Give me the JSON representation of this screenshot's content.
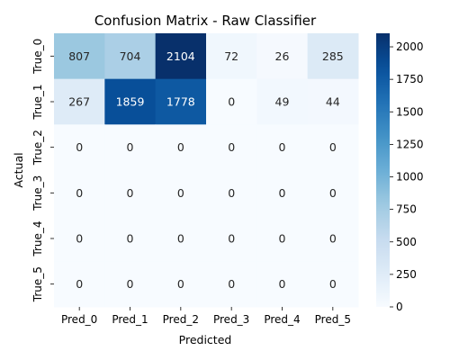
{
  "chart_data": {
    "type": "heatmap",
    "title": "Confusion Matrix - Raw Classifier",
    "xlabel": "Predicted",
    "ylabel": "Actual",
    "x_categories": [
      "Pred_0",
      "Pred_1",
      "Pred_2",
      "Pred_3",
      "Pred_4",
      "Pred_5"
    ],
    "y_categories": [
      "True_0",
      "True_1",
      "True_2",
      "True_3",
      "True_4",
      "True_5"
    ],
    "values": [
      [
        807,
        704,
        2104,
        72,
        26,
        285
      ],
      [
        267,
        1859,
        1778,
        0,
        49,
        44
      ],
      [
        0,
        0,
        0,
        0,
        0,
        0
      ],
      [
        0,
        0,
        0,
        0,
        0,
        0
      ],
      [
        0,
        0,
        0,
        0,
        0,
        0
      ],
      [
        0,
        0,
        0,
        0,
        0,
        0
      ]
    ],
    "colormap": "Blues",
    "colorbar": {
      "min": 0,
      "max": 2104,
      "ticks": [
        "0",
        "250",
        "500",
        "750",
        "1000",
        "1250",
        "1500",
        "1750",
        "2000"
      ]
    },
    "colors": {
      "low": "#f7fbff",
      "high": "#08306b",
      "text_dark": "#262626",
      "text_light": "#ffffff"
    }
  }
}
